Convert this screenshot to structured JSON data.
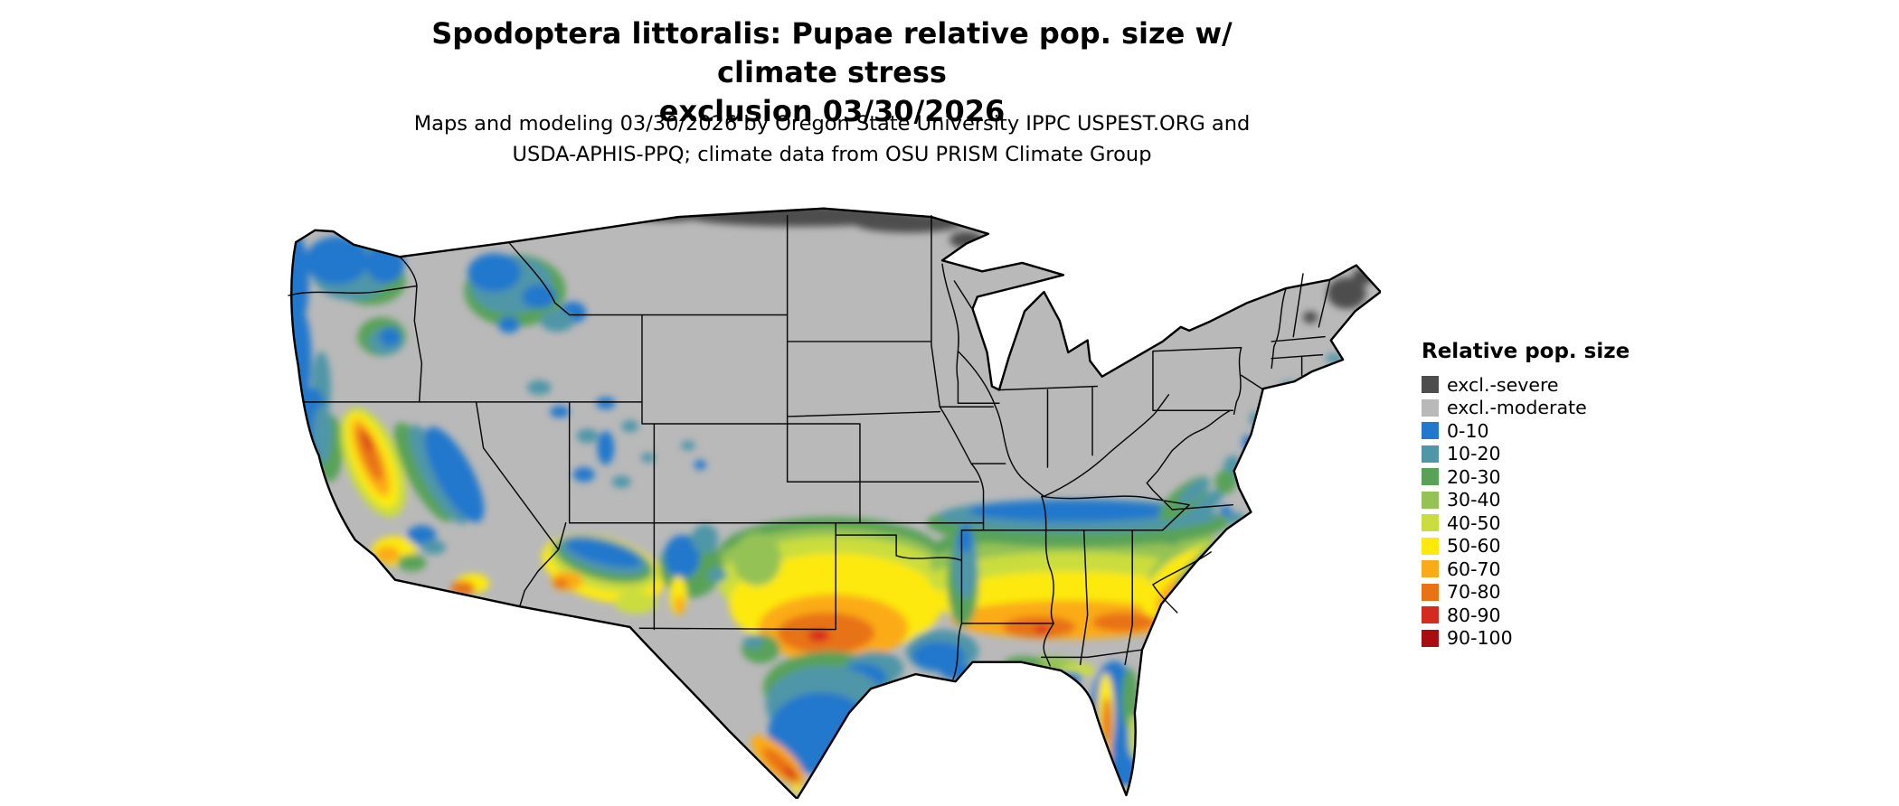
{
  "header": {
    "title_line1": "Spodoptera littoralis: Pupae relative pop. size w/ climate stress",
    "title_line2": "exclusion 03/30/2026",
    "subtitle_line1": "Maps and modeling 03/30/2026 by Oregon State University IPPC USPEST.ORG and",
    "subtitle_line2": "USDA-APHIS-PPQ; climate data from OSU PRISM Climate Group"
  },
  "legend": {
    "title": "Relative pop. size",
    "items": [
      {
        "label": "excl.-severe",
        "color": "#4d4d4d"
      },
      {
        "label": "excl.-moderate",
        "color": "#b9b9b9"
      },
      {
        "label": "0-10",
        "color": "#2278cc"
      },
      {
        "label": "10-20",
        "color": "#4f96a8"
      },
      {
        "label": "20-30",
        "color": "#58a258"
      },
      {
        "label": "30-40",
        "color": "#94c255"
      },
      {
        "label": "40-50",
        "color": "#cadd3e"
      },
      {
        "label": "50-60",
        "color": "#fde90a"
      },
      {
        "label": "60-70",
        "color": "#fbab18"
      },
      {
        "label": "70-80",
        "color": "#e87214"
      },
      {
        "label": "80-90",
        "color": "#d52a1d"
      },
      {
        "label": "90-100",
        "color": "#a80d10"
      }
    ]
  },
  "map": {
    "description": "Continental United States choropleth raster of relative pupae population size",
    "background": "#ffffff",
    "state_border_color": "#000000"
  }
}
